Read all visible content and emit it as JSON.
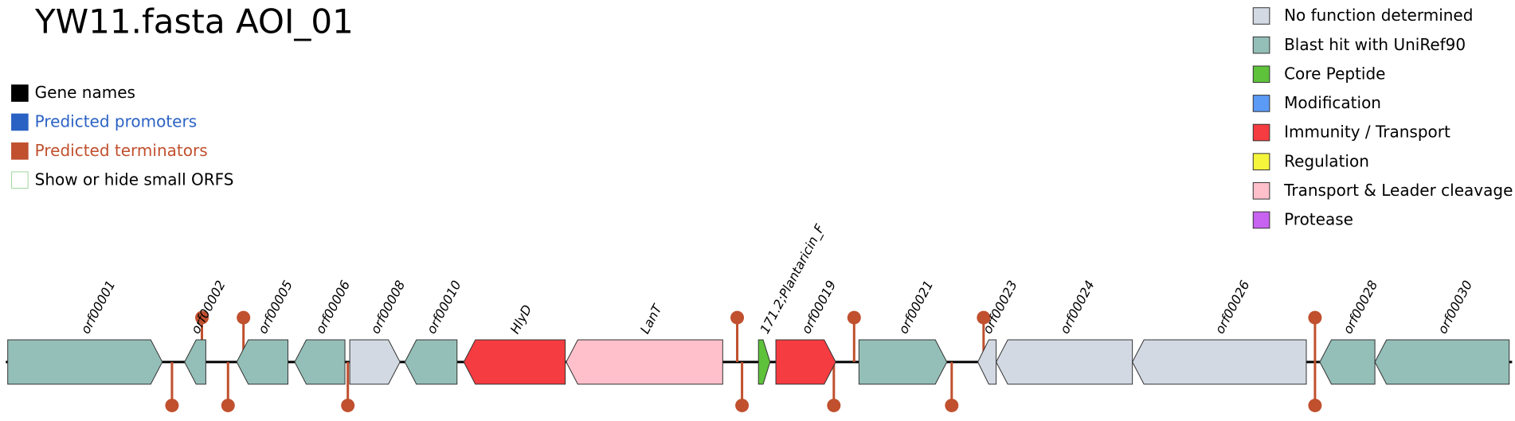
{
  "header": {
    "title": "YW11.fasta AOI_01"
  },
  "display_legend": [
    {
      "label": "Gene names",
      "color": "#000000",
      "text_color": "#000000"
    },
    {
      "label": "Predicted promoters",
      "color": "#2a62c4",
      "text_color": "#2a62c4"
    },
    {
      "label": "Predicted terminators",
      "color": "#c0502e",
      "text_color": "#c0502e"
    },
    {
      "label": "Show or hide small ORFS",
      "color": "#ffffff",
      "text_color": "#000000"
    }
  ],
  "function_legend": [
    {
      "label": "No function determined",
      "color": "#d3d9e3"
    },
    {
      "label": "Blast hit with UniRef90",
      "color": "#94bfb8"
    },
    {
      "label": "Core Peptide",
      "color": "#5ec23a"
    },
    {
      "label": "Modification",
      "color": "#5b9bf5"
    },
    {
      "label": "Immunity / Transport",
      "color": "#f53c41"
    },
    {
      "label": "Regulation",
      "color": "#f5f53c"
    },
    {
      "label": "Transport & Leader cleavage",
      "color": "#ffc0cb"
    },
    {
      "label": "Protease",
      "color": "#c763f0"
    }
  ],
  "genes": [
    {
      "label": "orf00001",
      "color": "#94bfb8"
    },
    {
      "label": "orf00002",
      "color": "#94bfb8"
    },
    {
      "label": "orf00005",
      "color": "#94bfb8"
    },
    {
      "label": "orf00006",
      "color": "#94bfb8"
    },
    {
      "label": "orf00008",
      "color": "#d3d9e3"
    },
    {
      "label": "orf00010",
      "color": "#94bfb8"
    },
    {
      "label": "HlyD",
      "color": "#f53c41"
    },
    {
      "label": "LanT",
      "color": "#ffc0cb"
    },
    {
      "label": "171.2;Plantaricin_F",
      "color": "#5ec23a"
    },
    {
      "label": "orf00019",
      "color": "#f53c41"
    },
    {
      "label": "orf00021",
      "color": "#94bfb8"
    },
    {
      "label": "orf00023",
      "color": "#d3d9e3"
    },
    {
      "label": "orf00024",
      "color": "#d3d9e3"
    },
    {
      "label": "orf00026",
      "color": "#d3d9e3"
    },
    {
      "label": "orf00028",
      "color": "#94bfb8"
    },
    {
      "label": "orf00030",
      "color": "#94bfb8"
    }
  ]
}
